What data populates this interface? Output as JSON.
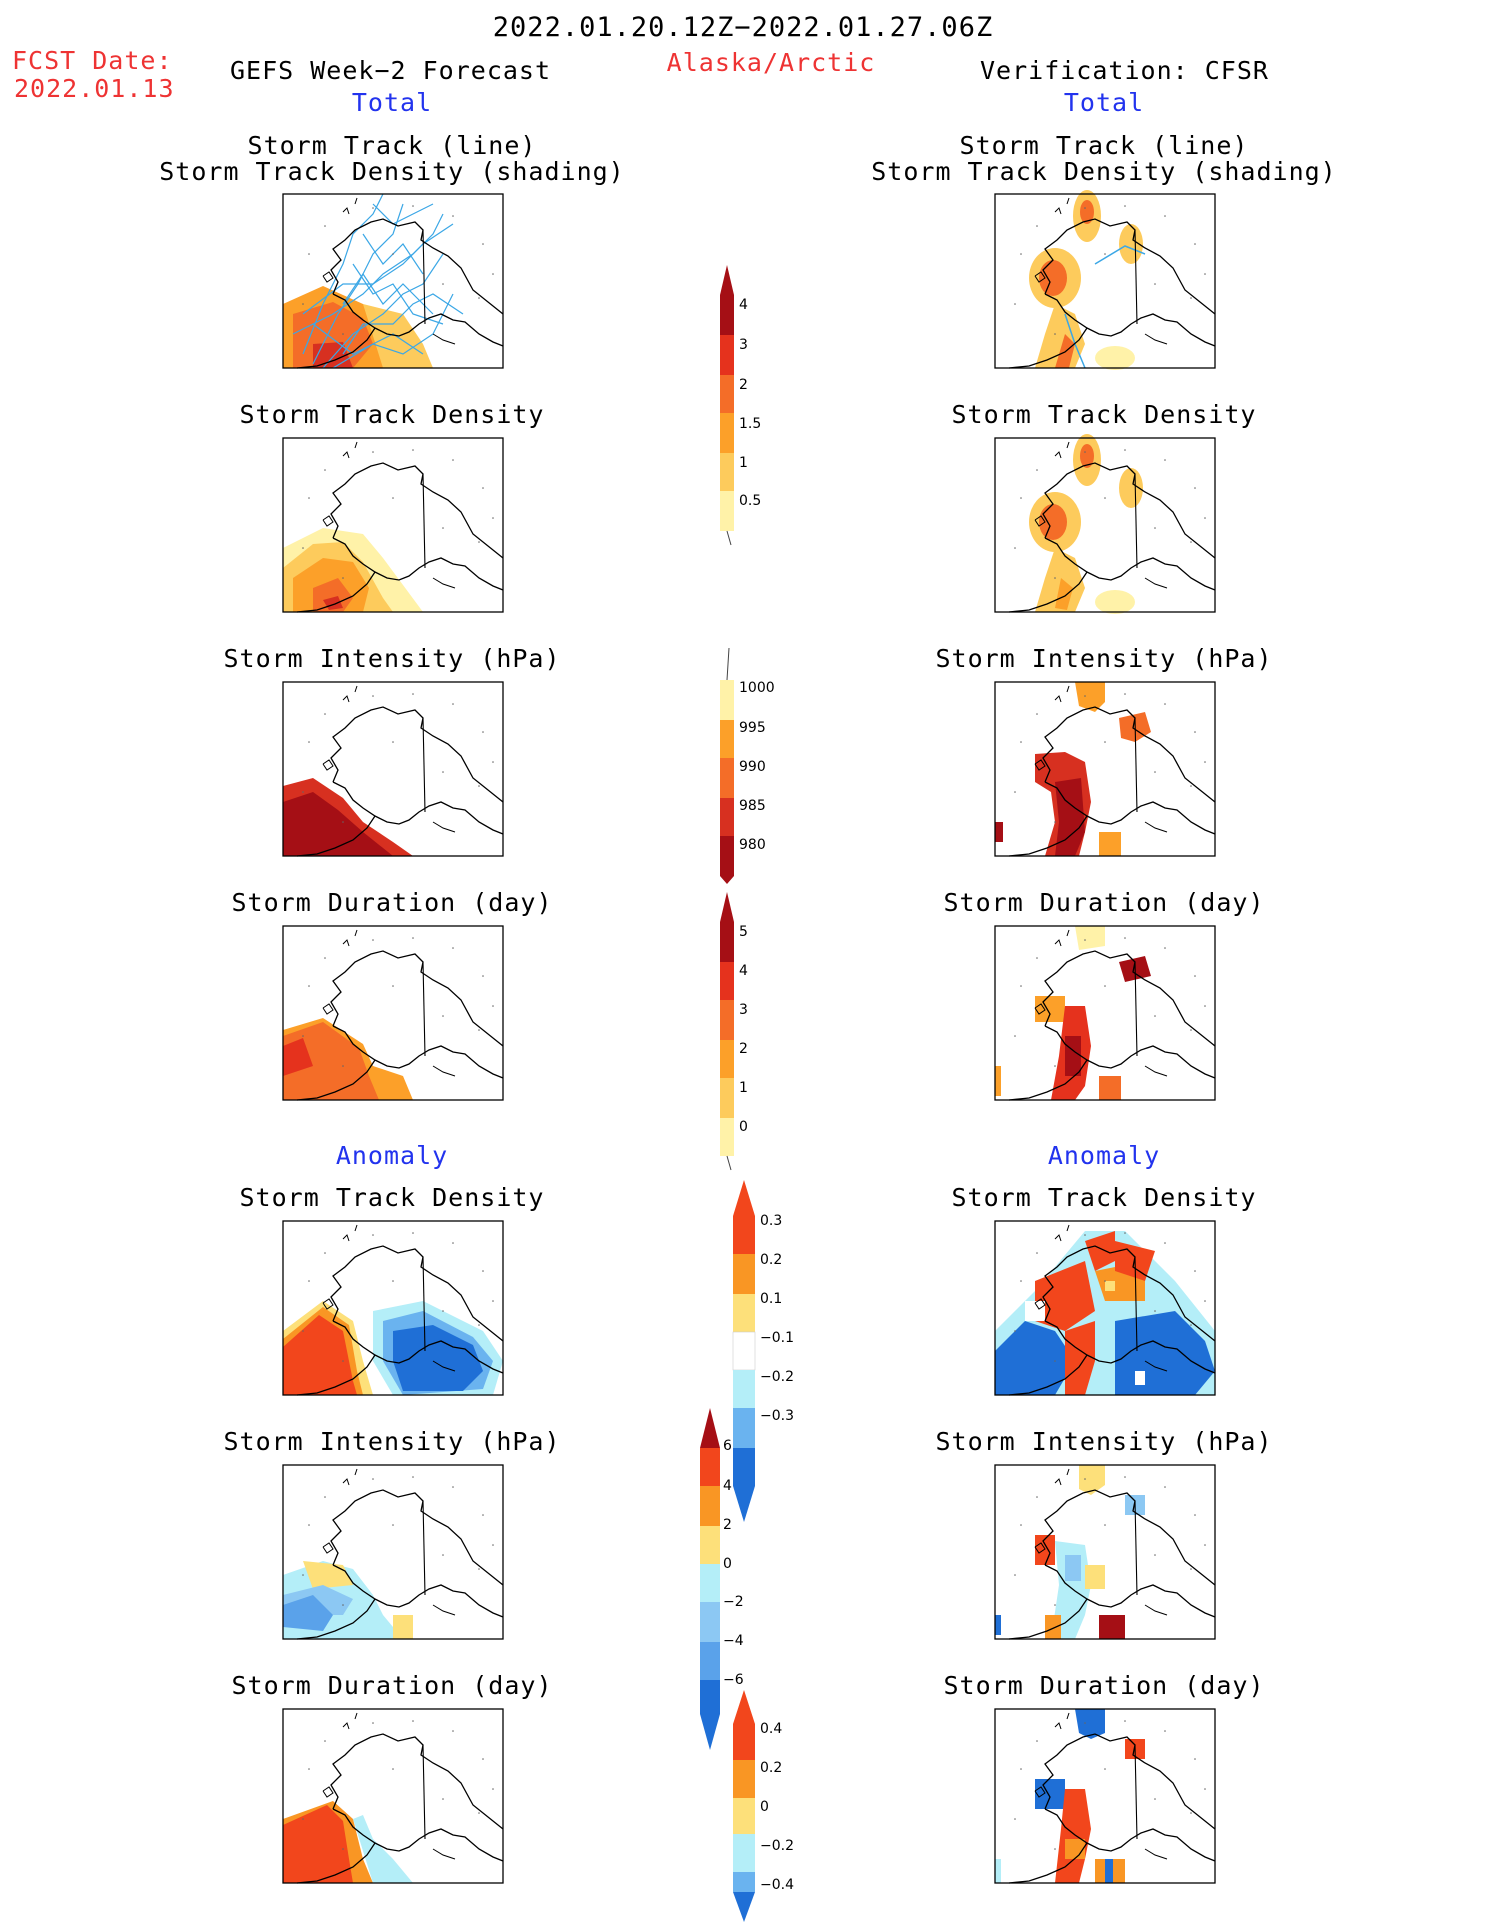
{
  "header": {
    "date_range": "2022.01.20.12Z−2022.01.27.06Z",
    "region": "Alaska/Arctic",
    "fcst_label": "FCST Date:",
    "fcst_date": "2022.01.13",
    "left_title": "GEFS Week−2 Forecast",
    "right_title": "Verification: CFSR",
    "total_label": "Total",
    "anomaly_label": "Anomaly"
  },
  "panels": {
    "track_line": "Storm Track (line)",
    "track_shading": "Storm Track Density (shading)",
    "density": "Storm Track Density",
    "intensity": "Storm Intensity (hPa)",
    "duration": "Storm Duration (day)"
  },
  "colorbars": [
    {
      "id": "cb-density",
      "ticks": [
        "4",
        "3",
        "2",
        "1.5",
        "1",
        "0.5"
      ],
      "colors": [
        "#a50f15",
        "#e5321d",
        "#f46d28",
        "#fca029",
        "#fdcb5c",
        "#fff2a8"
      ]
    },
    {
      "id": "cb-intensity",
      "ticks": [
        "1000",
        "995",
        "990",
        "985",
        "980"
      ],
      "colors": [
        "#fff2a8",
        "#fca029",
        "#f46d28",
        "#d73020",
        "#a50f15"
      ]
    },
    {
      "id": "cb-duration",
      "ticks": [
        "5",
        "4",
        "3",
        "2",
        "1",
        "0"
      ],
      "colors": [
        "#a50f15",
        "#e5321d",
        "#f46d28",
        "#fca029",
        "#fdcb5c",
        "#fff2a8"
      ]
    },
    {
      "id": "cb-anom-density",
      "ticks": [
        "0.3",
        "0.2",
        "0.1",
        "−0.1",
        "−0.2",
        "−0.3"
      ],
      "colors": [
        "#f2461c",
        "#f99624",
        "#fde07a",
        "#ffffff",
        "#b4eef8",
        "#6ab3ef",
        "#1f6fd6"
      ]
    },
    {
      "id": "cb-anom-intensity",
      "ticks": [
        "6",
        "4",
        "2",
        "0",
        "−2",
        "−4",
        "−6"
      ],
      "colors": [
        "#a50f15",
        "#f2461c",
        "#f99624",
        "#fde07a",
        "#b4eef8",
        "#8cc8f3",
        "#5aa2ea",
        "#1f6fd6"
      ]
    },
    {
      "id": "cb-anom-duration",
      "ticks": [
        "0.4",
        "0.2",
        "0",
        "−0.2",
        "−0.4"
      ],
      "colors": [
        "#f2461c",
        "#f99624",
        "#fde07a",
        "#b4eef8",
        "#6ab3ef",
        "#1f6fd6"
      ]
    }
  ],
  "colors": {
    "title_red": "#ee3333",
    "label_blue": "#2233ee",
    "track_line": "#3ba7e6"
  }
}
